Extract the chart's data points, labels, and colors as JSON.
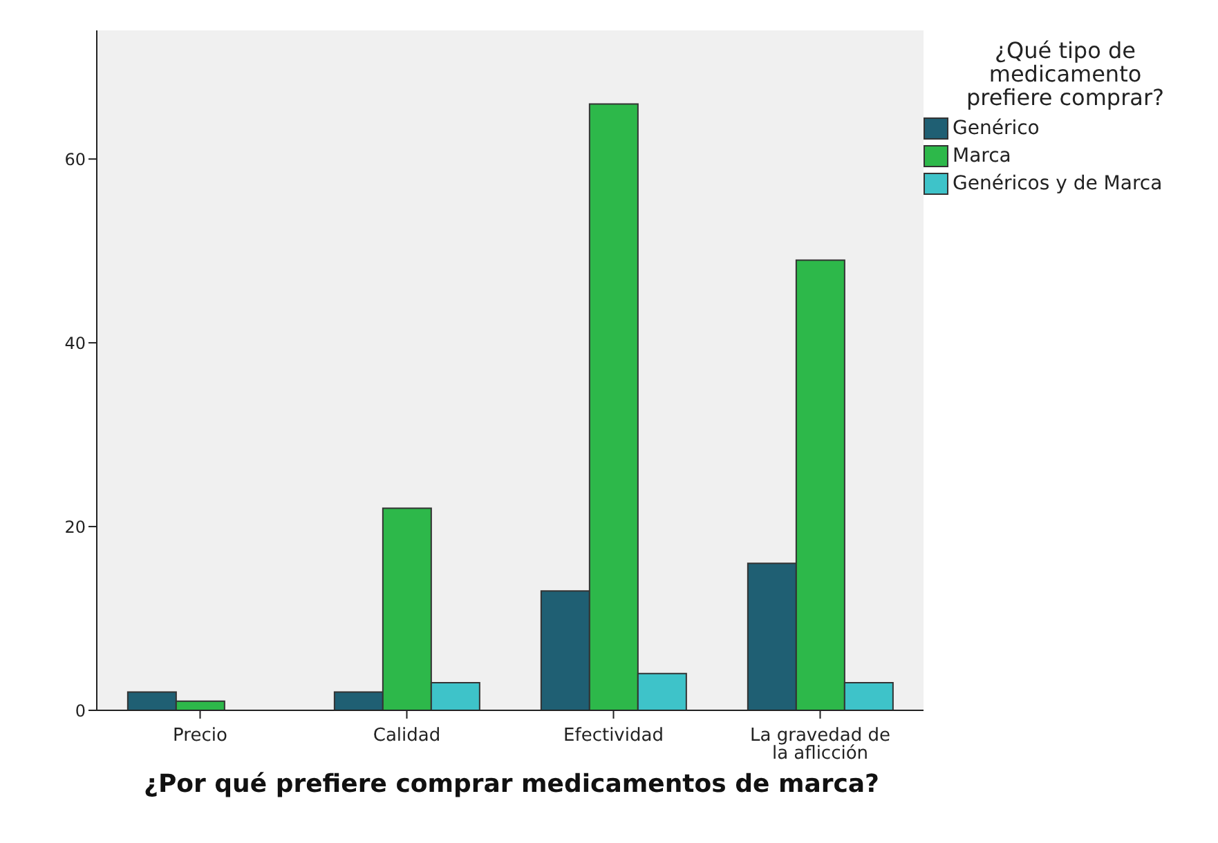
{
  "chart_data": {
    "type": "bar",
    "xlabel": "¿Por qué prefiere comprar medicamentos de marca?",
    "legend_title": "¿Qué tipo de medicamento prefiere comprar?",
    "categories": [
      "Precio",
      "Calidad",
      "Efectividad",
      "La gravedad de la aflicción"
    ],
    "series": [
      {
        "name": "Genérico",
        "color": "#1f5f73",
        "values": [
          2,
          2,
          13,
          16
        ]
      },
      {
        "name": "Marca",
        "color": "#2db84a",
        "values": [
          1,
          22,
          66,
          49
        ]
      },
      {
        "name": "Genéricos y de Marca",
        "color": "#3ec3c9",
        "values": [
          null,
          3,
          4,
          3
        ]
      }
    ],
    "ylim": [
      0,
      74
    ],
    "yticks": [
      0,
      20,
      40,
      60
    ],
    "legend": "right"
  }
}
